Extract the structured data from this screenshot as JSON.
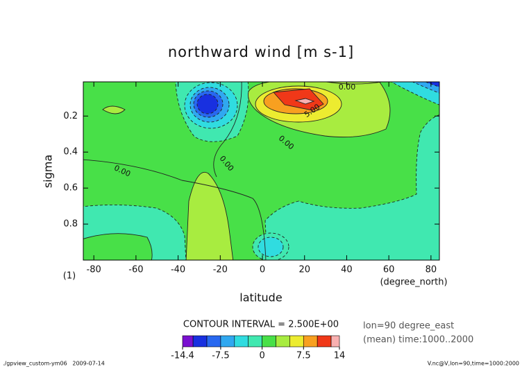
{
  "chart_data": {
    "type": "contour",
    "title": "northward wind [m s-1]",
    "xlabel": "latitude",
    "ylabel": "sigma",
    "x_unit": "(degree_north)",
    "y_unit": "(1)",
    "xlim": [
      -85,
      84
    ],
    "ylim": [
      1,
      0.01
    ],
    "xticks": [
      -80,
      -60,
      -40,
      -20,
      0,
      20,
      40,
      60,
      80
    ],
    "yticks": [
      0.2,
      0.4,
      0.6,
      0.8
    ],
    "contour_labels": [
      "0.00",
      "5.00",
      "0.00",
      "0.00",
      "0.00"
    ],
    "contour_interval": "CONTOUR INTERVAL = 2.500E+00",
    "levels": [
      -14.4,
      -12.5,
      -10,
      -7.5,
      -5,
      -2.5,
      0,
      2.5,
      5,
      7.5,
      10,
      12.5,
      14
    ],
    "colors": [
      "#7a10d0",
      "#1830e0",
      "#2868f0",
      "#30a8f0",
      "#30dce0",
      "#40e8b0",
      "#48e048",
      "#a8ec40",
      "#ecec30",
      "#f8a020",
      "#f03818",
      "#f8b0b0"
    ],
    "colorbar_ticks": [
      -14.4,
      -7.5,
      0,
      7.5,
      14
    ],
    "info": [
      "lon=90 degree_east",
      "(mean) time:1000..2000"
    ]
  },
  "footer": {
    "left": "./gpview_custom-ym06   2009-07-14",
    "right": "V.nc@V,lon=90,time=1000:2000"
  }
}
